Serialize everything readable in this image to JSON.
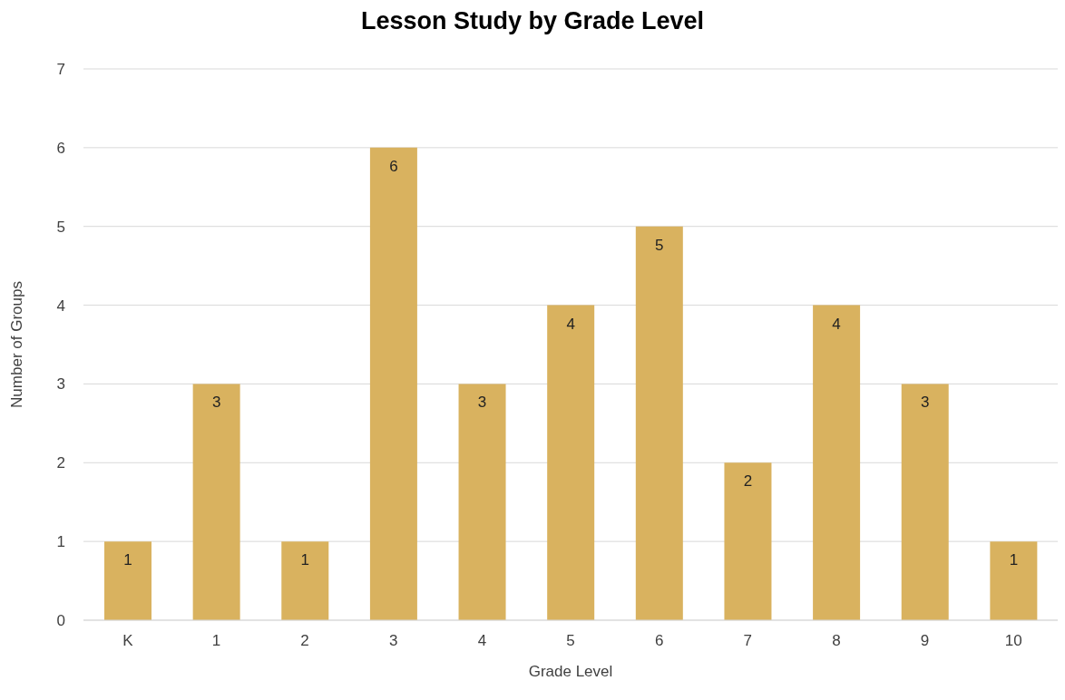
{
  "chart_data": {
    "type": "bar",
    "title": "Lesson Study by Grade Level",
    "xlabel": "Grade Level",
    "ylabel": "Number of Groups",
    "categories": [
      "K",
      "1",
      "2",
      "3",
      "4",
      "5",
      "6",
      "7",
      "8",
      "9",
      "10"
    ],
    "values": [
      1,
      3,
      1,
      6,
      3,
      4,
      5,
      2,
      4,
      3,
      1
    ],
    "color": "#d9b25f",
    "ylim": [
      0,
      7
    ],
    "yticks": [
      0,
      1,
      2,
      3,
      4,
      5,
      6,
      7
    ],
    "grid": "y",
    "data_labels": true
  }
}
